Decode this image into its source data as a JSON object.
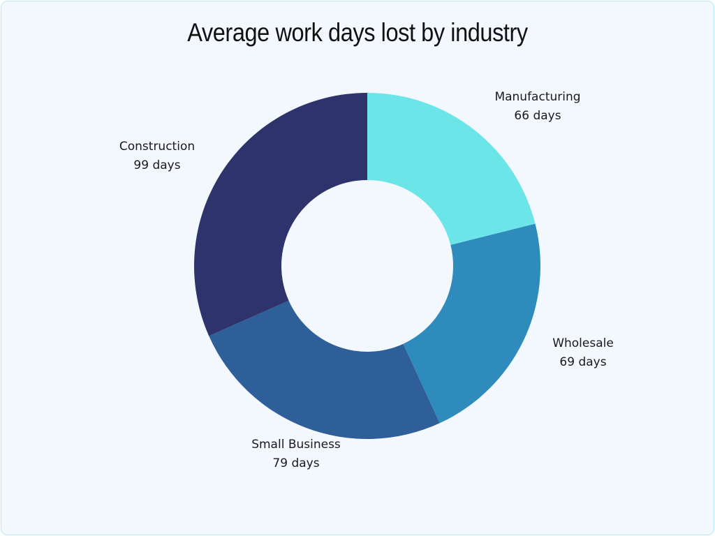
{
  "chart_data": {
    "type": "pie",
    "variant": "donut",
    "title": "Average work days lost by industry",
    "categories": [
      "Manufacturing",
      "Wholesale",
      "Small Business",
      "Construction"
    ],
    "values": [
      66,
      69,
      79,
      99
    ],
    "unit": "days",
    "labels": [
      "66 days",
      "69 days",
      "79 days",
      "99 days"
    ],
    "colors": [
      "#6ce5e8",
      "#2e8bbb",
      "#2e5f99",
      "#2f336b"
    ],
    "legend": "none (labels outside slices)"
  },
  "background": "#f3f8ff",
  "border_color": "#b9e6f5"
}
